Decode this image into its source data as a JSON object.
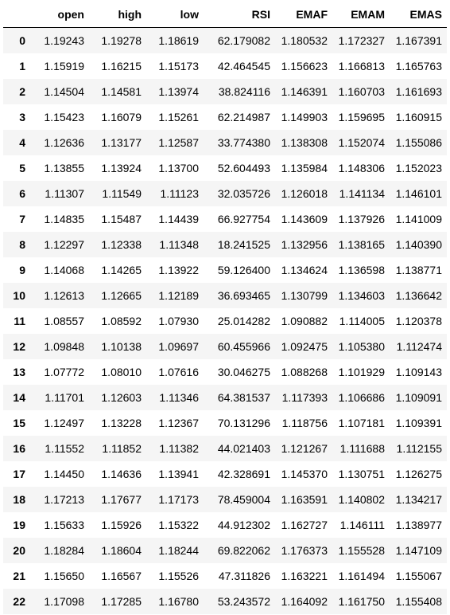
{
  "table": {
    "index_header": "",
    "columns": [
      "open",
      "high",
      "low",
      "RSI",
      "EMAF",
      "EMAM",
      "EMAS"
    ],
    "rows": [
      {
        "index": "0",
        "values": [
          "1.19243",
          "1.19278",
          "1.18619",
          "62.179082",
          "1.180532",
          "1.172327",
          "1.167391"
        ]
      },
      {
        "index": "1",
        "values": [
          "1.15919",
          "1.16215",
          "1.15173",
          "42.464545",
          "1.156623",
          "1.166813",
          "1.165763"
        ]
      },
      {
        "index": "2",
        "values": [
          "1.14504",
          "1.14581",
          "1.13974",
          "38.824116",
          "1.146391",
          "1.160703",
          "1.161693"
        ]
      },
      {
        "index": "3",
        "values": [
          "1.15423",
          "1.16079",
          "1.15261",
          "62.214987",
          "1.149903",
          "1.159695",
          "1.160915"
        ]
      },
      {
        "index": "4",
        "values": [
          "1.12636",
          "1.13177",
          "1.12587",
          "33.774380",
          "1.138308",
          "1.152074",
          "1.155086"
        ]
      },
      {
        "index": "5",
        "values": [
          "1.13855",
          "1.13924",
          "1.13700",
          "52.604493",
          "1.135984",
          "1.148306",
          "1.152023"
        ]
      },
      {
        "index": "6",
        "values": [
          "1.11307",
          "1.11549",
          "1.11123",
          "32.035726",
          "1.126018",
          "1.141134",
          "1.146101"
        ]
      },
      {
        "index": "7",
        "values": [
          "1.14835",
          "1.15487",
          "1.14439",
          "66.927754",
          "1.143609",
          "1.137926",
          "1.141009"
        ]
      },
      {
        "index": "8",
        "values": [
          "1.12297",
          "1.12338",
          "1.11348",
          "18.241525",
          "1.132956",
          "1.138165",
          "1.140390"
        ]
      },
      {
        "index": "9",
        "values": [
          "1.14068",
          "1.14265",
          "1.13922",
          "59.126400",
          "1.134624",
          "1.136598",
          "1.138771"
        ]
      },
      {
        "index": "10",
        "values": [
          "1.12613",
          "1.12665",
          "1.12189",
          "36.693465",
          "1.130799",
          "1.134603",
          "1.136642"
        ]
      },
      {
        "index": "11",
        "values": [
          "1.08557",
          "1.08592",
          "1.07930",
          "25.014282",
          "1.090882",
          "1.114005",
          "1.120378"
        ]
      },
      {
        "index": "12",
        "values": [
          "1.09848",
          "1.10138",
          "1.09697",
          "60.455966",
          "1.092475",
          "1.105380",
          "1.112474"
        ]
      },
      {
        "index": "13",
        "values": [
          "1.07772",
          "1.08010",
          "1.07616",
          "30.046275",
          "1.088268",
          "1.101929",
          "1.109143"
        ]
      },
      {
        "index": "14",
        "values": [
          "1.11701",
          "1.12603",
          "1.11346",
          "64.381537",
          "1.117393",
          "1.106686",
          "1.109091"
        ]
      },
      {
        "index": "15",
        "values": [
          "1.12497",
          "1.13228",
          "1.12367",
          "70.131296",
          "1.118756",
          "1.107181",
          "1.109391"
        ]
      },
      {
        "index": "16",
        "values": [
          "1.11552",
          "1.11852",
          "1.11382",
          "44.021403",
          "1.121267",
          "1.111688",
          "1.112155"
        ]
      },
      {
        "index": "17",
        "values": [
          "1.14450",
          "1.14636",
          "1.13941",
          "42.328691",
          "1.145370",
          "1.130751",
          "1.126275"
        ]
      },
      {
        "index": "18",
        "values": [
          "1.17213",
          "1.17677",
          "1.17173",
          "78.459004",
          "1.163591",
          "1.140802",
          "1.134217"
        ]
      },
      {
        "index": "19",
        "values": [
          "1.15633",
          "1.15926",
          "1.15322",
          "44.912302",
          "1.162727",
          "1.146111",
          "1.138977"
        ]
      },
      {
        "index": "20",
        "values": [
          "1.18284",
          "1.18604",
          "1.18244",
          "69.822062",
          "1.176373",
          "1.155528",
          "1.147109"
        ]
      },
      {
        "index": "21",
        "values": [
          "1.15650",
          "1.16567",
          "1.15526",
          "47.311826",
          "1.163221",
          "1.161494",
          "1.155067"
        ]
      },
      {
        "index": "22",
        "values": [
          "1.17098",
          "1.17285",
          "1.16780",
          "53.243572",
          "1.164092",
          "1.161750",
          "1.155408"
        ]
      }
    ]
  }
}
